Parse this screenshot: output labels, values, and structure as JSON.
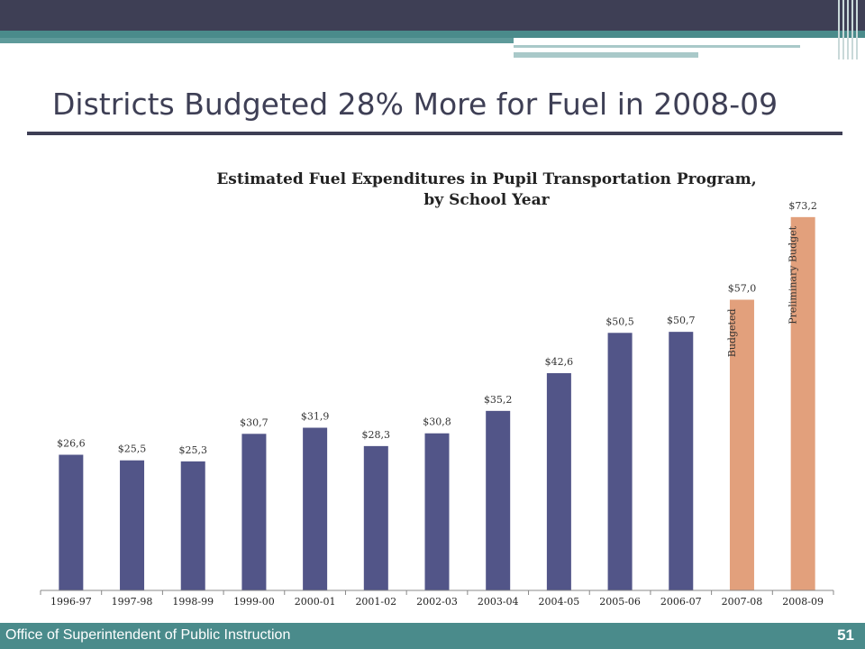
{
  "slide": {
    "title": "Districts Budgeted 28% More for Fuel in 2008-09",
    "footer_text": "Office of Superintendent of Public Instruction",
    "page_number": "51"
  },
  "colors": {
    "actual_bar": "#525588",
    "projected_bar": "#e2a07c",
    "header_dark": "#3e3f55",
    "accent_teal": "#4a8b8b"
  },
  "chart_data": {
    "type": "bar",
    "title_lines": [
      "Estimated Fuel Expenditures in Pupil Transportation Program,",
      "by School Year"
    ],
    "categories": [
      "1996-97",
      "1997-98",
      "1998-99",
      "1999-00",
      "2000-01",
      "2001-02",
      "2002-03",
      "2003-04",
      "2004-05",
      "2005-06",
      "2006-07",
      "2007-08",
      "2008-09"
    ],
    "values": [
      26.6,
      25.5,
      25.3,
      30.7,
      31.9,
      28.3,
      30.8,
      35.2,
      42.6,
      50.5,
      50.7,
      57.0,
      73.2
    ],
    "value_labels": [
      "$26,6",
      "$25,5",
      "$25,3",
      "$30,7",
      "$31,9",
      "$28,3",
      "$30,8",
      "$35,2",
      "$42,6",
      "$50,5",
      "$50,7",
      "$57,0",
      "$73,2"
    ],
    "bar_kind": [
      "actual",
      "actual",
      "actual",
      "actual",
      "actual",
      "actual",
      "actual",
      "actual",
      "actual",
      "actual",
      "actual",
      "projected",
      "projected"
    ],
    "bar_annotations": [
      "",
      "",
      "",
      "",
      "",
      "",
      "",
      "",
      "",
      "",
      "",
      "Budgeted",
      "Preliminary Budget"
    ],
    "ylim": [
      0,
      76
    ],
    "grid": false,
    "legend": "none"
  }
}
